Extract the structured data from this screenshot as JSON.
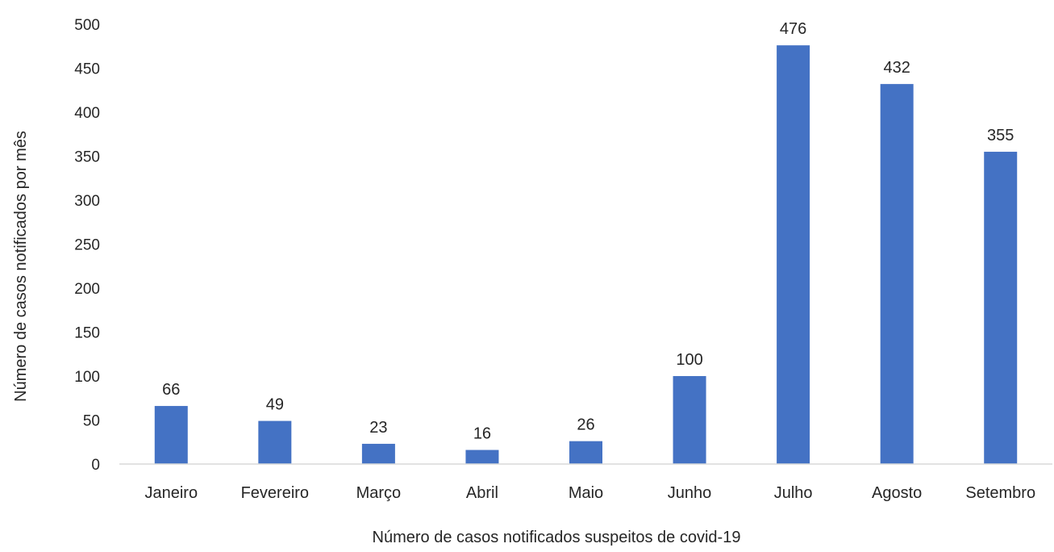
{
  "chart_data": {
    "type": "bar",
    "title": "",
    "xlabel": "Número de casos notificados suspeitos de covid-19",
    "ylabel": "Número de casos notificados por mês",
    "categories": [
      "Janeiro",
      "Fevereiro",
      "Março",
      "Abril",
      "Maio",
      "Junho",
      "Julho",
      "Agosto",
      "Setembro"
    ],
    "values": [
      66,
      49,
      23,
      16,
      26,
      100,
      476,
      432,
      355
    ],
    "ylim": [
      0,
      500
    ],
    "yticks": [
      "0",
      "50",
      "100",
      "150",
      "200",
      "250",
      "300",
      "350",
      "400",
      "450",
      "500"
    ],
    "data_labels": [
      "66",
      "49",
      "23",
      "16",
      "26",
      "100",
      "476",
      "432",
      "355"
    ],
    "grid": false,
    "legend": "none",
    "bar_color": "#4472C4"
  }
}
